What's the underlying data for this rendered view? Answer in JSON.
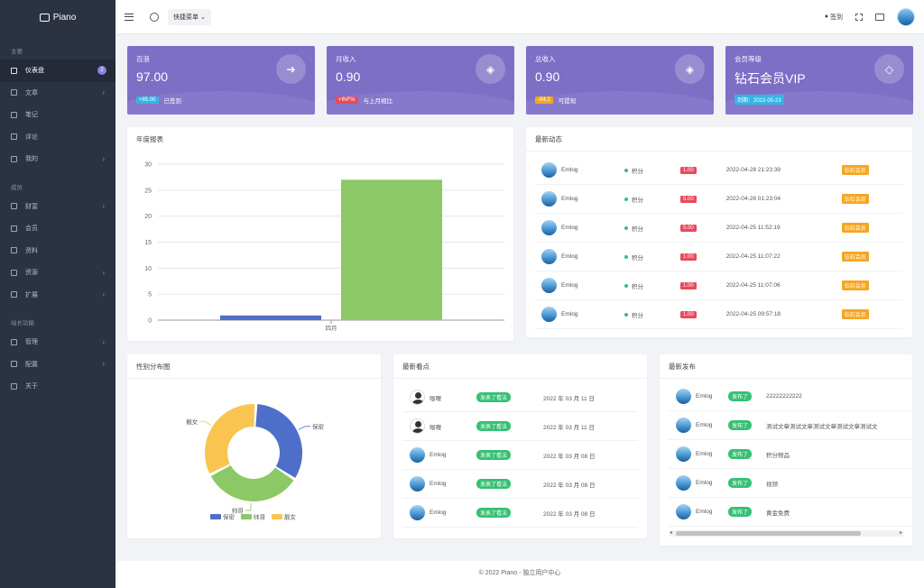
{
  "brand": {
    "name": "Piano"
  },
  "sidebar": {
    "section_main": "主要",
    "section_member": "成员",
    "section_other": "站长功能",
    "items_main": [
      {
        "label": "仪表盘",
        "icon": "dashboard-icon",
        "badge": "2",
        "active": true
      },
      {
        "label": "文章",
        "icon": "article-icon",
        "caret": "›"
      },
      {
        "label": "笔记",
        "icon": "note-icon"
      },
      {
        "label": "评论",
        "icon": "comment-icon"
      },
      {
        "label": "我的",
        "icon": "mine-icon",
        "caret": "›"
      }
    ],
    "items_member": [
      {
        "label": "财富",
        "icon": "wealth-icon",
        "caret": "›"
      },
      {
        "label": "会员",
        "icon": "crown-icon"
      },
      {
        "label": "资料",
        "icon": "profile-icon"
      },
      {
        "label": "资源",
        "icon": "resource-icon",
        "caret": "›"
      },
      {
        "label": "扩展",
        "icon": "extension-icon",
        "caret": "›"
      }
    ],
    "items_other": [
      {
        "label": "管理",
        "icon": "manage-icon",
        "caret": "›"
      },
      {
        "label": "配置",
        "icon": "config-icon",
        "caret": "›"
      },
      {
        "label": "关于",
        "icon": "about-icon"
      }
    ]
  },
  "topbar": {
    "quick_menu": "快捷菜单 ⌄",
    "signin": "签到"
  },
  "stats": [
    {
      "title": "百浪",
      "value": "97.00",
      "tag": "+85.00",
      "tag_color": "#33b5e5",
      "note": "已签到",
      "icon": "fish-icon",
      "glyph": "➔"
    },
    {
      "title": "月收入",
      "value": "0.90",
      "tag": "+INF%",
      "tag_color": "#e84a5c",
      "note": "与上月相比",
      "icon": "layers-icon",
      "glyph": "◈"
    },
    {
      "title": "总收入",
      "value": "0.90",
      "tag": "-84.1",
      "tag_color": "#f5a623",
      "note": "可提现",
      "icon": "layers-icon",
      "glyph": "◈"
    },
    {
      "title": "会员等级",
      "value": "钻石会员VIP",
      "tag": "到期：2022-05-23",
      "tag_color": "#33b5e5",
      "note": "",
      "icon": "diamond-icon",
      "glyph": "◇"
    }
  ],
  "annual_report": {
    "title": "年度报表",
    "chart_data": {
      "type": "bar",
      "categories": [
        "四月"
      ],
      "series": [
        {
          "values": [
            0.9
          ],
          "color": "#4e6fc9"
        },
        {
          "values": [
            27
          ],
          "color": "#8cc866"
        }
      ],
      "ylim": [
        0,
        30
      ],
      "yticks": [
        0,
        5,
        10,
        15,
        20,
        25,
        30
      ]
    }
  },
  "latest_activity": {
    "title": "最新动态",
    "rows": [
      {
        "user": "Emlog",
        "type": "积分",
        "amount": "1.00",
        "time": "2022-04-28 21:23:39",
        "level": "钻石会员"
      },
      {
        "user": "Emlog",
        "type": "积分",
        "amount": "5.00",
        "time": "2022-04-28 01:23:04",
        "level": "钻石会员"
      },
      {
        "user": "Emlog",
        "type": "积分",
        "amount": "5.00",
        "time": "2022-04-25 11:52:19",
        "level": "钻石会员"
      },
      {
        "user": "Emlog",
        "type": "积分",
        "amount": "1.00",
        "time": "2022-04-25 11:07:22",
        "level": "钻石会员"
      },
      {
        "user": "Emlog",
        "type": "积分",
        "amount": "1.00",
        "time": "2022-04-25 11:07:06",
        "level": "钻石会员"
      },
      {
        "user": "Emlog",
        "type": "积分",
        "amount": "1.00",
        "time": "2022-04-25 09:57:18",
        "level": "钻石会员"
      }
    ]
  },
  "gender": {
    "title": "性别分布图",
    "chart_data": {
      "type": "pie",
      "labels": [
        "保密",
        "帅哥",
        "靓女"
      ],
      "values": [
        1,
        1,
        1
      ],
      "colors": [
        "#4e6fc9",
        "#8cc866",
        "#f9c550"
      ]
    }
  },
  "latest_viewpoints": {
    "title": "最新看点",
    "rows": [
      {
        "user": "咖喱",
        "action": "发表了看法",
        "date": "2022 年 03 月 11 日",
        "avatar": "dark"
      },
      {
        "user": "咖喱",
        "action": "发表了看法",
        "date": "2022 年 03 月 11 日",
        "avatar": "dark"
      },
      {
        "user": "Emlog",
        "action": "发表了看法",
        "date": "2022 年 03 月 08 日",
        "avatar": "blue"
      },
      {
        "user": "Emlog",
        "action": "发表了看法",
        "date": "2022 年 03 月 08 日",
        "avatar": "blue"
      },
      {
        "user": "Emlog",
        "action": "发表了看法",
        "date": "2022 年 03 月 08 日",
        "avatar": "blue"
      }
    ]
  },
  "latest_posts": {
    "title": "最新发布",
    "rows": [
      {
        "user": "Emlog",
        "action": "发布了",
        "content": "22222222222"
      },
      {
        "user": "Emlog",
        "action": "发布了",
        "content": "测试文章测试文章测试文章测试文章测试文"
      },
      {
        "user": "Emlog",
        "action": "发布了",
        "content": "积分物品"
      },
      {
        "user": "Emlog",
        "action": "发布了",
        "content": "视频"
      },
      {
        "user": "Emlog",
        "action": "发布了",
        "content": "黄金免费"
      }
    ]
  },
  "footer": {
    "text": "© 2022 Piano - 独立用户中心"
  }
}
